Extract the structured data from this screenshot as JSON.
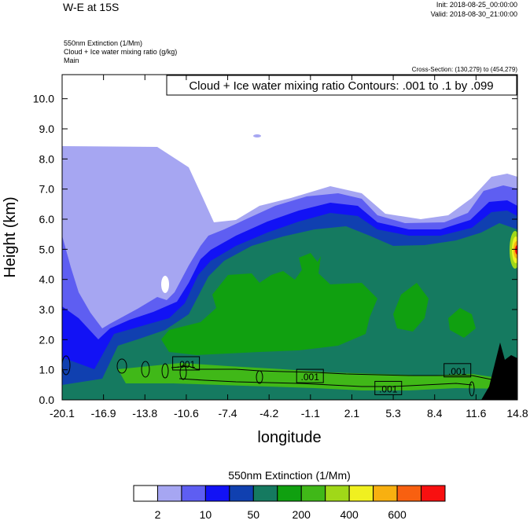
{
  "header": {
    "title": "W-E at 15S",
    "init": "Init: 2018-08-25_00:00:00",
    "valid": "Valid: 2018-08-30_21:00:00",
    "field_line1": "550nm Extinction   (1/Mm)",
    "field_line2": "Cloud + Ice water mixing ratio   (g/kg)",
    "field_line3": "Main",
    "cross_section": "Cross-Section: (130,279) to (454,279)",
    "contour_box": "Cloud + Ice water mixing ratio Contours: .001 to .1 by .099"
  },
  "colors": {
    "levels": [
      "#ffffff",
      "#a6a6f2",
      "#5e5ef2",
      "#1212f5",
      "#1040b0",
      "#157a60",
      "#10a010",
      "#40b818",
      "#a0d818",
      "#f0f020",
      "#f8b010",
      "#f86010",
      "#f81010"
    ],
    "terrain": "#000000"
  },
  "chart_data": {
    "type": "contour-cross-section",
    "xlabel": "longitude",
    "ylabel": "Height (km)",
    "xlim": [
      -20.1,
      14.8
    ],
    "ylim": [
      0.0,
      10.8
    ],
    "x_ticks": [
      "-20.1",
      "-16.9",
      "-13.8",
      "-10.6",
      "-7.4",
      "-4.2",
      "-1.1",
      "2.1",
      "5.3",
      "8.4",
      "11.6",
      "14.8"
    ],
    "y_ticks": [
      {
        "value": 0.0,
        "label": "0.0"
      },
      {
        "value": 1.0,
        "label": "1.0"
      },
      {
        "value": 2.0,
        "label": "2.0"
      },
      {
        "value": 3.0,
        "label": "3.0"
      },
      {
        "value": 4.0,
        "label": "4.0"
      },
      {
        "value": 5.0,
        "label": "5.0"
      },
      {
        "value": 6.0,
        "label": "6.0"
      },
      {
        "value": 7.0,
        "label": "7.0"
      },
      {
        "value": 8.0,
        "label": "8.0"
      },
      {
        "value": 9.0,
        "label": "9.0"
      },
      {
        "value": 10.0,
        "label": "10.0"
      }
    ],
    "contour_labels": [
      {
        "text": ".001",
        "x": -10.6,
        "y": 1.2
      },
      {
        "text": ".001",
        "x": -1.1,
        "y": 0.78
      },
      {
        "text": ".001",
        "x": 4.9,
        "y": 0.38
      },
      {
        "text": ".001",
        "x": 10.2,
        "y": 0.97
      }
    ],
    "colorbar": {
      "title": "550nm Extinction  (1/Mm)",
      "labels": [
        {
          "text": "2",
          "index": 1
        },
        {
          "text": "10",
          "index": 3
        },
        {
          "text": "50",
          "index": 5
        },
        {
          "text": "200",
          "index": 7
        },
        {
          "text": "400",
          "index": 9
        },
        {
          "text": "600",
          "index": 11
        }
      ]
    }
  }
}
